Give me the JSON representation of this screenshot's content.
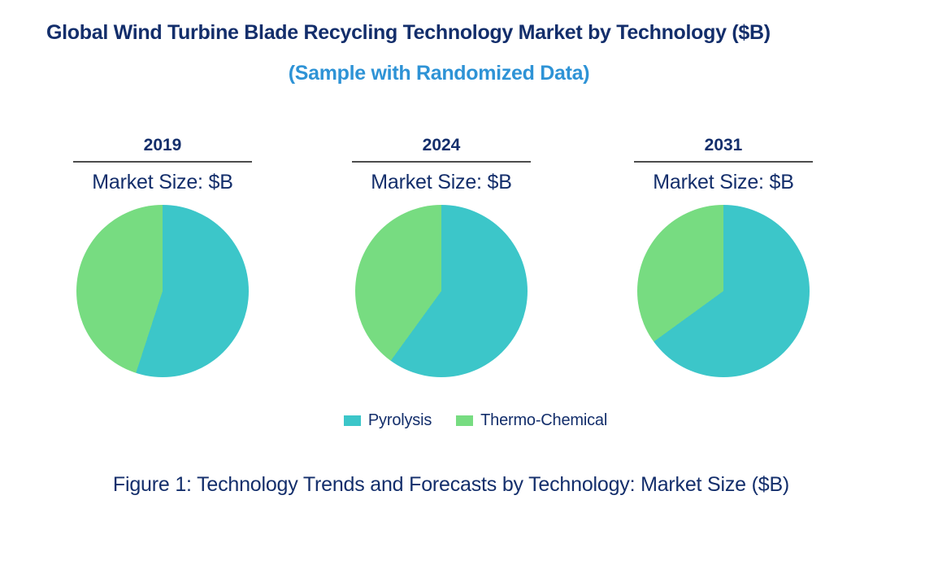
{
  "colors": {
    "navy": "#132E6B",
    "accent_blue": "#2E93D6",
    "pyrolysis": "#3CC6C9",
    "thermo_chemical": "#77DC81",
    "rule_gray": "#4D4D4D"
  },
  "header": {
    "title": "Global Wind Turbine Blade Recycling Technology Market by Technology ($B)",
    "subtitle": "(Sample with Randomized Data)"
  },
  "chart_data": [
    {
      "type": "pie",
      "title": "2019",
      "unit_label": "Market Size: $B",
      "labels": [
        "Pyrolysis",
        "Thermo-Chemical"
      ],
      "values": [
        55,
        45
      ],
      "value_unit": "% share of market (estimated from arc angles; no numeric labels shown)",
      "start_angle_deg": 0,
      "direction": "clockwise",
      "legend_position": "bottom"
    },
    {
      "type": "pie",
      "title": "2024",
      "unit_label": "Market Size: $B",
      "labels": [
        "Pyrolysis",
        "Thermo-Chemical"
      ],
      "values": [
        60,
        40
      ],
      "value_unit": "% share of market (estimated from arc angles; no numeric labels shown)",
      "start_angle_deg": 0,
      "direction": "clockwise",
      "legend_position": "bottom"
    },
    {
      "type": "pie",
      "title": "2031",
      "unit_label": "Market Size: $B",
      "labels": [
        "Pyrolysis",
        "Thermo-Chemical"
      ],
      "values": [
        65,
        35
      ],
      "value_unit": "% share of market (estimated from arc angles; no numeric labels shown)",
      "start_angle_deg": 0,
      "direction": "clockwise",
      "legend_position": "bottom"
    }
  ],
  "legend": {
    "items": [
      {
        "label": "Pyrolysis",
        "color_key": "pyrolysis"
      },
      {
        "label": "Thermo-Chemical",
        "color_key": "thermo_chemical"
      }
    ]
  },
  "caption": "Figure 1: Technology Trends and Forecasts by Technology: Market Size ($B)"
}
